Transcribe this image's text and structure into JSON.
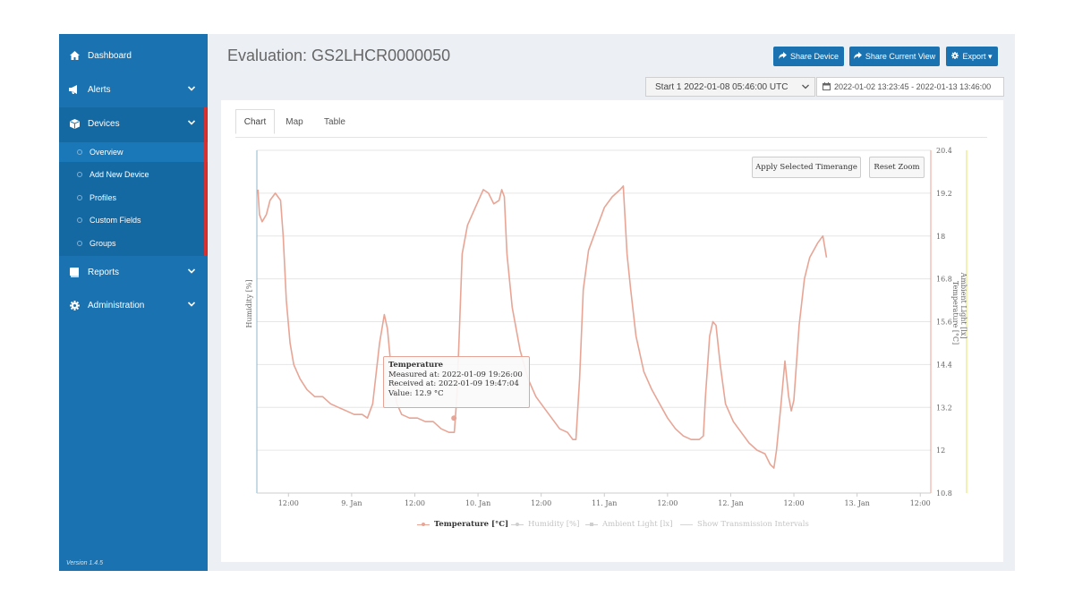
{
  "sidebar": {
    "items": [
      {
        "label": "Dashboard",
        "icon": "home-icon",
        "chevron": ""
      },
      {
        "label": "Alerts",
        "icon": "bullhorn-icon",
        "chevron": "⌄"
      },
      {
        "label": "Devices",
        "icon": "cube-icon",
        "chevron": "⌄"
      },
      {
        "label": "Reports",
        "icon": "book-icon",
        "chevron": "⌄"
      },
      {
        "label": "Administration",
        "icon": "gear-icon",
        "chevron": "⌄"
      }
    ],
    "subitems": [
      "Overview",
      "Add New Device",
      "Profiles",
      "Custom Fields",
      "Groups"
    ],
    "version": "Version 1.4.5"
  },
  "header": {
    "title": "Evaluation: GS2LHCR0000050",
    "share_device": "Share Device",
    "share_view": "Share Current View",
    "export": "Export ▾",
    "start_select": "Start 1 2022-01-08 05:46:00 UTC",
    "date_range": "2022-01-02 13:23:45 - 2022-01-13 13:46:00"
  },
  "tabs": [
    "Chart",
    "Map",
    "Table"
  ],
  "chart_controls": {
    "apply": "Apply Selected Timerange",
    "reset": "Reset Zoom"
  },
  "tooltip": {
    "title": "Temperature",
    "measured": "Measured at: 2022-01-09 19:26:00",
    "received": "Received at: 2022-01-09 19:47:04",
    "value": "Value: 12.9 °C"
  },
  "colors": {
    "accent": "#1a73b0",
    "temperature": "#e8a595",
    "light_axis": "#e6e36a",
    "humidity_axis": "#8fb7cf"
  },
  "chart_data": {
    "type": "line",
    "xlabel_ticks": [
      "12:00",
      "9. Jan",
      "12:00",
      "10. Jan",
      "12:00",
      "11. Jan",
      "12:00",
      "12. Jan",
      "12:00",
      "13. Jan",
      "12:00"
    ],
    "x_tick_hours": [
      12,
      24,
      36,
      48,
      60,
      72,
      84,
      96,
      108,
      120,
      132
    ],
    "left_axis_label": "Humidity [%]",
    "right_axis_label": "Temperature [°C]",
    "right_axis2_label": "Ambient Light [lx]",
    "ylim": [
      10.8,
      20.4
    ],
    "y_ticks": [
      "10.8",
      "12",
      "13.2",
      "14.4",
      "15.6",
      "16.8",
      "18",
      "19.2",
      "20.4"
    ],
    "xlim_hours": [
      6,
      134
    ],
    "x_unit": "hours since 2022-01-08 00:00",
    "series": [
      {
        "name": "Temperature [°C]",
        "points": [
          [
            6.2,
            19.3
          ],
          [
            6.5,
            18.6
          ],
          [
            7,
            18.4
          ],
          [
            7.8,
            18.6
          ],
          [
            8.5,
            19
          ],
          [
            9.5,
            19.2
          ],
          [
            10.5,
            19
          ],
          [
            11,
            18
          ],
          [
            11.6,
            16.2
          ],
          [
            12.3,
            15
          ],
          [
            13,
            14.4
          ],
          [
            14.2,
            14
          ],
          [
            15.5,
            13.7
          ],
          [
            17,
            13.5
          ],
          [
            18.5,
            13.5
          ],
          [
            20,
            13.3
          ],
          [
            21.5,
            13.2
          ],
          [
            23,
            13.1
          ],
          [
            24.5,
            13
          ],
          [
            26,
            13
          ],
          [
            27,
            12.9
          ],
          [
            28,
            13.3
          ],
          [
            29.3,
            15
          ],
          [
            30.2,
            15.8
          ],
          [
            30.8,
            15.4
          ],
          [
            31.5,
            14.3
          ],
          [
            32.6,
            13.3
          ],
          [
            33.5,
            13
          ],
          [
            35,
            12.9
          ],
          [
            36.5,
            12.9
          ],
          [
            38,
            12.8
          ],
          [
            39.5,
            12.8
          ],
          [
            41,
            12.6
          ],
          [
            42.5,
            12.5
          ],
          [
            43.5,
            12.5
          ],
          [
            44,
            13.5
          ],
          [
            44.5,
            15.5
          ],
          [
            45,
            17.5
          ],
          [
            46,
            18.3
          ],
          [
            47.5,
            18.8
          ],
          [
            49,
            19.3
          ],
          [
            50,
            19.2
          ],
          [
            51,
            18.9
          ],
          [
            52,
            19
          ],
          [
            52.5,
            19.3
          ],
          [
            53,
            19.1
          ],
          [
            53.5,
            17.5
          ],
          [
            54.5,
            16
          ],
          [
            56,
            14.8
          ],
          [
            57.5,
            14
          ],
          [
            59,
            13.5
          ],
          [
            60.5,
            13.2
          ],
          [
            62,
            12.9
          ],
          [
            63.5,
            12.6
          ],
          [
            65,
            12.5
          ],
          [
            66,
            12.3
          ],
          [
            66.6,
            12.3
          ],
          [
            67.3,
            14
          ],
          [
            68,
            16.5
          ],
          [
            69,
            17.6
          ],
          [
            70.5,
            18.2
          ],
          [
            72,
            18.8
          ],
          [
            73.5,
            19.1
          ],
          [
            75,
            19.3
          ],
          [
            75.6,
            19.4
          ],
          [
            76.3,
            17.5
          ],
          [
            77,
            16.5
          ],
          [
            78,
            15.2
          ],
          [
            79.5,
            14.2
          ],
          [
            81,
            13.7
          ],
          [
            82.5,
            13.3
          ],
          [
            84,
            12.9
          ],
          [
            85.5,
            12.6
          ],
          [
            87,
            12.4
          ],
          [
            88.5,
            12.3
          ],
          [
            90,
            12.3
          ],
          [
            90.8,
            12.4
          ],
          [
            91.2,
            13.5
          ],
          [
            92,
            15.2
          ],
          [
            92.6,
            15.6
          ],
          [
            93.2,
            15.5
          ],
          [
            94,
            14.4
          ],
          [
            95,
            13.3
          ],
          [
            96.5,
            12.8
          ],
          [
            98,
            12.5
          ],
          [
            99.5,
            12.2
          ],
          [
            101,
            12
          ],
          [
            102.5,
            11.9
          ],
          [
            103.5,
            11.6
          ],
          [
            104.2,
            11.5
          ],
          [
            104.7,
            12
          ],
          [
            105.5,
            13.2
          ],
          [
            106.3,
            14.5
          ],
          [
            107,
            13.5
          ],
          [
            107.5,
            13.1
          ],
          [
            108,
            13.4
          ],
          [
            109,
            15.5
          ],
          [
            110,
            16.8
          ],
          [
            111,
            17.4
          ],
          [
            112.5,
            17.8
          ],
          [
            113.5,
            18
          ],
          [
            114.2,
            17.4
          ]
        ]
      },
      {
        "name": "Humidity [%]",
        "points": []
      },
      {
        "name": "Ambient Light [lx]",
        "points": []
      },
      {
        "name": "Show Transmission Intervals",
        "points": []
      }
    ],
    "legend_position": "bottom",
    "grid": true
  }
}
